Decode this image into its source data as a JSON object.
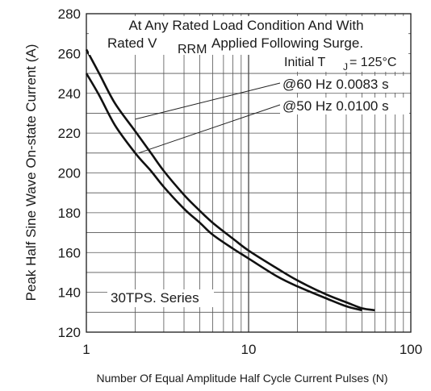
{
  "chart_data": {
    "type": "line",
    "xlabel": "Number Of Equal Amplitude Half Cycle Current Pulses (N)",
    "ylabel": "Peak Half Sine Wave On-state Current (A)",
    "xscale": "log",
    "xlim": [
      1,
      100
    ],
    "ylim": [
      120,
      280
    ],
    "x_ticks": [
      "1",
      "10",
      "100"
    ],
    "y_ticks": [
      "120",
      "140",
      "160",
      "180",
      "200",
      "220",
      "240",
      "260",
      "280"
    ],
    "grid": true,
    "annotation_lines": [
      "At Any Rated Load Condition And With",
      "Rated V",
      "RRM",
      "Applied Following Surge."
    ],
    "initial_tj": {
      "text": "Initial T",
      "sub": "J",
      "rest": "= 125°C"
    },
    "series": [
      {
        "name": "@60 Hz 0.0083 s",
        "x": [
          1,
          1.2,
          1.5,
          2,
          2.5,
          3,
          4,
          5,
          6,
          8,
          10,
          15,
          20,
          30,
          40,
          50,
          60
        ],
        "y": [
          262,
          250,
          235,
          221,
          210,
          201,
          189,
          181,
          175,
          167,
          161,
          152,
          146,
          139,
          135,
          132,
          131
        ]
      },
      {
        "name": "@50 Hz 0.0100 s",
        "x": [
          1,
          1.2,
          1.5,
          2,
          2.5,
          3,
          4,
          5,
          6,
          8,
          10,
          15,
          20,
          30,
          40,
          50
        ],
        "y": [
          250,
          239,
          224,
          210,
          201,
          193,
          182,
          175,
          169,
          162,
          157,
          148,
          143,
          137,
          133,
          131
        ]
      }
    ],
    "series_label": "30TPS. Series"
  }
}
